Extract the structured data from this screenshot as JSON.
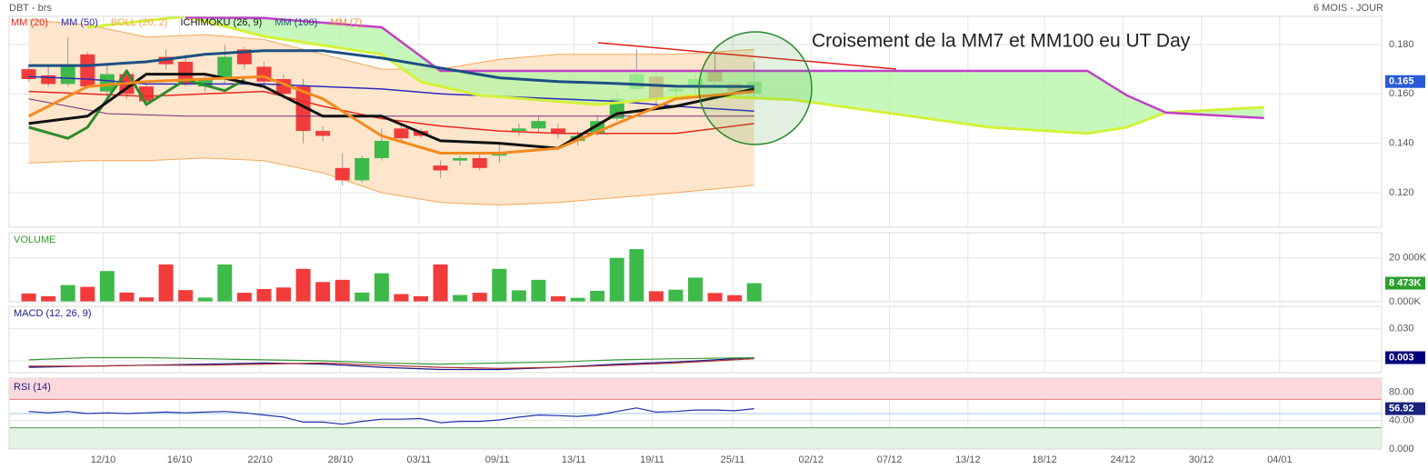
{
  "chart_data": [
    {
      "type": "candlestick",
      "title": "DBT - brs",
      "subtitle": "6 MOIS - JOUR",
      "annotation": "Croisement de la MM7 et MM100 eu UT Day",
      "up_color": "#3dba49",
      "down_color": "#f23b3b",
      "badge_color": "#2a5bd7",
      "grid": true,
      "open": [
        0.17,
        0.1675,
        0.164,
        0.176,
        0.161,
        0.168,
        0.163,
        0.175,
        0.173,
        0.163,
        0.166,
        0.178,
        0.171,
        0.166,
        0.163,
        0.145,
        0.13,
        0.125,
        0.134,
        0.146,
        0.145,
        0.131,
        0.133,
        0.134,
        0.135,
        0.145,
        0.146,
        0.146,
        0.141,
        0.144,
        0.15,
        0.162,
        0.167,
        0.161,
        0.163,
        0.169,
        0.164,
        0.16
      ],
      "high": [
        0.172,
        0.171,
        0.183,
        0.177,
        0.172,
        0.17,
        0.164,
        0.178,
        0.176,
        0.168,
        0.18,
        0.179,
        0.173,
        0.168,
        0.166,
        0.147,
        0.136,
        0.135,
        0.146,
        0.148,
        0.146,
        0.133,
        0.135,
        0.136,
        0.14,
        0.148,
        0.151,
        0.148,
        0.145,
        0.151,
        0.16,
        0.178,
        0.168,
        0.164,
        0.168,
        0.177,
        0.165,
        0.173
      ],
      "low": [
        0.165,
        0.163,
        0.163,
        0.162,
        0.159,
        0.158,
        0.155,
        0.17,
        0.163,
        0.161,
        0.164,
        0.17,
        0.163,
        0.158,
        0.14,
        0.141,
        0.123,
        0.124,
        0.133,
        0.14,
        0.142,
        0.126,
        0.131,
        0.129,
        0.132,
        0.143,
        0.144,
        0.142,
        0.139,
        0.143,
        0.149,
        0.161,
        0.156,
        0.159,
        0.16,
        0.163,
        0.159,
        0.158
      ],
      "close": [
        0.166,
        0.164,
        0.172,
        0.163,
        0.168,
        0.16,
        0.157,
        0.172,
        0.164,
        0.166,
        0.175,
        0.172,
        0.165,
        0.16,
        0.145,
        0.143,
        0.125,
        0.134,
        0.141,
        0.142,
        0.143,
        0.129,
        0.134,
        0.13,
        0.136,
        0.146,
        0.149,
        0.144,
        0.143,
        0.149,
        0.158,
        0.168,
        0.158,
        0.162,
        0.166,
        0.165,
        0.161,
        0.165
      ],
      "ylim": [
        0.106,
        0.1914
      ],
      "yticks": [
        {
          "value": 0.18,
          "label": "0.180"
        },
        {
          "value": 0.16,
          "label": "0.160"
        },
        {
          "value": 0.14,
          "label": "0.140"
        },
        {
          "value": 0.12,
          "label": "0.120"
        }
      ],
      "overlays": [
        {
          "kind": "line",
          "name": "MM (20)",
          "color": "#e8281e",
          "width": 1.5,
          "x": [
            0,
            3,
            6,
            9,
            12,
            15,
            18,
            21,
            24,
            27,
            30,
            33,
            37
          ],
          "values": [
            0.161,
            0.16,
            0.159,
            0.16,
            0.161,
            0.155,
            0.15,
            0.147,
            0.145,
            0.144,
            0.144,
            0.144,
            0.148
          ]
        },
        {
          "kind": "line",
          "name": "MM (50)",
          "color": "#2b2bb8",
          "width": 1.5,
          "x": [
            0,
            3,
            6,
            9,
            12,
            15,
            18,
            21,
            24,
            27,
            30,
            33,
            37
          ],
          "values": [
            0.167,
            0.166,
            0.164,
            0.164,
            0.164,
            0.163,
            0.162,
            0.16,
            0.159,
            0.158,
            0.157,
            0.155,
            0.153
          ]
        },
        {
          "kind": "band",
          "name": "BOLL (20, 2)",
          "color": "#f5a85a",
          "fill": "#fde6cc",
          "x": [
            0,
            3,
            6,
            9,
            12,
            15,
            18,
            21,
            24,
            27,
            30,
            33,
            37
          ],
          "upper": [
            0.19,
            0.188,
            0.183,
            0.184,
            0.182,
            0.176,
            0.17,
            0.17,
            0.174,
            0.176,
            0.176,
            0.176,
            0.178
          ],
          "lower": [
            0.132,
            0.133,
            0.133,
            0.134,
            0.133,
            0.128,
            0.12,
            0.116,
            0.115,
            0.116,
            0.118,
            0.12,
            0.123
          ]
        },
        {
          "kind": "ichimoku",
          "name": "ICHIMOKU (26, 9)",
          "color": "#111111",
          "cloud_fill": "#b4f5a4",
          "tenkan": {
            "color": "#111111",
            "width": 3,
            "x": [
              0,
              3,
              6,
              9,
              12,
              15,
              18,
              21,
              24,
              27,
              30,
              33,
              37
            ],
            "values": [
              0.148,
              0.151,
              0.168,
              0.168,
              0.163,
              0.151,
              0.151,
              0.141,
              0.14,
              0.138,
              0.152,
              0.155,
              0.162
            ]
          },
          "kijun": {
            "color": "#7a2a7a",
            "width": 1,
            "x": [
              0,
              4,
              8,
              37
            ],
            "values": [
              0.158,
              0.152,
              0.151,
              0.151
            ]
          },
          "chikou": {
            "color": "#2e8b2e",
            "width": 3,
            "x": [
              0,
              2,
              3,
              5,
              6,
              8,
              10,
              11
            ],
            "values": [
              0.1465,
              0.142,
              0.1465,
              0.1693,
              0.1557,
              0.1657,
              0.1613,
              0.1657
            ]
          },
          "span_a": {
            "color": "#d2f23a",
            "width": 3,
            "x": [
              3,
              8,
              12,
              18,
              20,
              23,
              29,
              34,
              39,
              45,
              49,
              54,
              56,
              58,
              63
            ],
            "values": [
              0.187,
              0.1914,
              0.1833,
              0.176,
              0.1649,
              0.1594,
              0.1557,
              0.1594,
              0.1576,
              0.151,
              0.1465,
              0.144,
              0.1465,
              0.1524,
              0.1546
            ]
          },
          "span_b": {
            "color": "#c040c8",
            "width": 2.5,
            "x": [
              8,
              12,
              18,
              21,
              23,
              29,
              35,
              41,
              47,
              54,
              56,
              58,
              63
            ],
            "values": [
              0.191,
              0.1907,
              0.187,
              0.1693,
              0.1693,
              0.1693,
              0.1693,
              0.1693,
              0.1693,
              0.1693,
              0.1594,
              0.1524,
              0.1502
            ]
          }
        },
        {
          "kind": "line",
          "name": "MM (100)",
          "color": "#1d4f82",
          "width": 3,
          "x": [
            0,
            3,
            6,
            9,
            12,
            15,
            18,
            21,
            24,
            27,
            30,
            33,
            37
          ],
          "values": [
            0.1715,
            0.1715,
            0.173,
            0.176,
            0.1775,
            0.1775,
            0.1745,
            0.1705,
            0.1665,
            0.165,
            0.1642,
            0.1631,
            0.163
          ]
        },
        {
          "kind": "line",
          "name": "MM (7)",
          "color": "#f38a1e",
          "width": 3,
          "x": [
            0,
            3,
            6,
            9,
            12,
            15,
            18,
            21,
            24,
            27,
            30,
            33,
            37
          ],
          "values": [
            0.151,
            0.163,
            0.165,
            0.166,
            0.167,
            0.158,
            0.143,
            0.136,
            0.136,
            0.138,
            0.148,
            0.158,
            0.161
          ]
        }
      ]
    },
    {
      "type": "bar",
      "title": "VOLUME",
      "badge_color": "#2ca02c",
      "values": [
        3800,
        2500,
        7600,
        6800,
        14000,
        4200,
        2000,
        17000,
        5300,
        1900,
        17000,
        4100,
        5800,
        6500,
        15000,
        9000,
        10000,
        4200,
        13000,
        3500,
        2500,
        17000,
        3100,
        4100,
        15000,
        5200,
        10000,
        2500,
        1800,
        5000,
        20000,
        24000,
        4800,
        5500,
        11000,
        4000,
        3000,
        8473
      ],
      "value_labels": [
        null,
        null,
        null,
        null,
        null,
        null,
        null,
        null,
        null,
        null,
        null,
        null,
        null,
        null,
        null,
        null,
        null,
        null,
        null,
        null,
        null,
        null,
        null,
        null,
        null,
        null,
        null,
        null,
        null,
        null,
        null,
        null,
        null,
        null,
        null,
        null,
        null,
        "8 473K"
      ],
      "ylim": [
        0,
        31500
      ],
      "yticks": [
        {
          "value": 20000,
          "label": "20 000K"
        },
        {
          "value": 0,
          "label": "0.000K"
        }
      ]
    },
    {
      "type": "line",
      "title": "MACD (12, 26, 9)",
      "badge_color": "#00007a",
      "x": [
        0,
        3,
        6,
        9,
        12,
        15,
        18,
        21,
        24,
        27,
        30,
        33,
        37
      ],
      "series": [
        {
          "color": "#1a1a8c",
          "values": [
            -0.006,
            -0.005,
            -0.004,
            -0.003,
            -0.002,
            -0.003,
            -0.006,
            -0.008,
            -0.008,
            -0.006,
            -0.003,
            -0.001,
            0.003
          ]
        },
        {
          "color": "#b03030",
          "values": [
            -0.005,
            -0.005,
            -0.004,
            -0.004,
            -0.003,
            -0.002,
            -0.004,
            -0.006,
            -0.007,
            -0.006,
            -0.004,
            -0.002,
            0.002
          ]
        },
        {
          "color": "#3a9a3a",
          "values": [
            0.001,
            0.003,
            0.003,
            0.002,
            0.001,
            0.0,
            -0.002,
            -0.003,
            -0.002,
            -0.001,
            0.001,
            0.002,
            0.003
          ]
        }
      ],
      "ylim": [
        -0.011,
        0.051
      ],
      "yticks": [
        {
          "value": 0.03,
          "label": "0.030"
        },
        {
          "value": 0,
          "label": "0.000"
        }
      ]
    },
    {
      "type": "line",
      "title": "RSI (14)",
      "badge_color": "#1a237e",
      "series": [
        {
          "color": "#2233aa",
          "values": [
            53,
            51,
            53,
            50,
            51,
            50,
            51,
            52,
            51,
            52,
            53,
            51,
            48,
            45,
            38,
            38,
            35,
            39,
            42,
            42,
            43,
            37,
            39,
            39,
            41,
            45,
            48,
            47,
            46,
            48,
            53,
            58,
            52,
            53,
            55,
            55,
            54,
            56.92
          ]
        }
      ],
      "ylim": [
        0,
        100
      ],
      "yticks": [
        {
          "value": 80,
          "label": "80.00"
        },
        {
          "value": 40,
          "label": "40.00"
        },
        {
          "value": 0,
          "label": "0.000"
        }
      ],
      "zones": [
        {
          "from": 70,
          "to": 100,
          "fill": "#fbd9dc",
          "line": "#e87878"
        },
        {
          "from": 0,
          "to": 30,
          "fill": "#e3f4e3",
          "line": "#5a9a5a"
        }
      ],
      "midline": {
        "value": 50,
        "color": "#9ec8ee"
      },
      "xlim": [
        -1,
        69
      ],
      "xticks": [
        {
          "value": 3.8,
          "label": "12/10"
        },
        {
          "value": 7.7,
          "label": "16/10"
        },
        {
          "value": 11.8,
          "label": "22/10"
        },
        {
          "value": 15.9,
          "label": "28/10"
        },
        {
          "value": 19.9,
          "label": "03/11"
        },
        {
          "value": 23.9,
          "label": "09/11"
        },
        {
          "value": 27.8,
          "label": "13/11"
        },
        {
          "value": 31.8,
          "label": "19/11"
        },
        {
          "value": 35.9,
          "label": "25/11"
        },
        {
          "value": 39.9,
          "label": "02/12"
        },
        {
          "value": 43.9,
          "label": "07/12"
        },
        {
          "value": 47.9,
          "label": "13/12"
        },
        {
          "value": 51.8,
          "label": "18/12"
        },
        {
          "value": 55.8,
          "label": "24/12"
        },
        {
          "value": 59.8,
          "label": "30/12"
        },
        {
          "value": 63.8,
          "label": "04/01"
        }
      ]
    }
  ]
}
